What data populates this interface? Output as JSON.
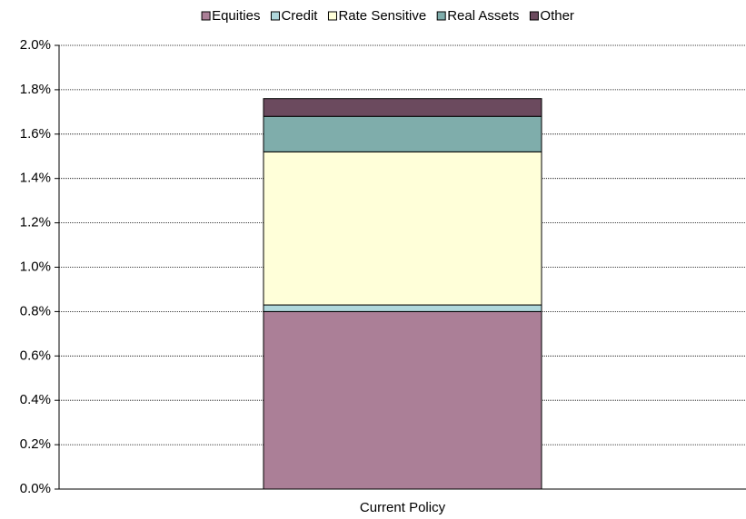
{
  "chart_data": {
    "type": "stacked_bar",
    "categories": [
      "Current Policy"
    ],
    "series": [
      {
        "name": "Equities",
        "color": "#ab7f97",
        "values": [
          0.8
        ]
      },
      {
        "name": "Credit",
        "color": "#b0d8dc",
        "values": [
          0.03
        ]
      },
      {
        "name": "Rate Sensitive",
        "color": "#ffffd9",
        "values": [
          0.69
        ]
      },
      {
        "name": "Real Assets",
        "color": "#7fadab",
        "values": [
          0.16
        ]
      },
      {
        "name": "Other",
        "color": "#6b4a5e",
        "values": [
          0.08
        ]
      }
    ],
    "ylim": [
      0,
      2.0
    ],
    "yticks": [
      {
        "value": 0,
        "label": "0.0%"
      },
      {
        "value": 0.2,
        "label": "0.2%"
      },
      {
        "value": 0.4,
        "label": "0.4%"
      },
      {
        "value": 0.6,
        "label": "0.6%"
      },
      {
        "value": 0.8,
        "label": "0.8%"
      },
      {
        "value": 1.0,
        "label": "1.0%"
      },
      {
        "value": 1.2,
        "label": "1.2%"
      },
      {
        "value": 1.4,
        "label": "1.4%"
      },
      {
        "value": 1.6,
        "label": "1.6%"
      },
      {
        "value": 1.8,
        "label": "1.8%"
      },
      {
        "value": 2.0,
        "label": "2.0%"
      }
    ],
    "grid": true,
    "legend": "top"
  }
}
